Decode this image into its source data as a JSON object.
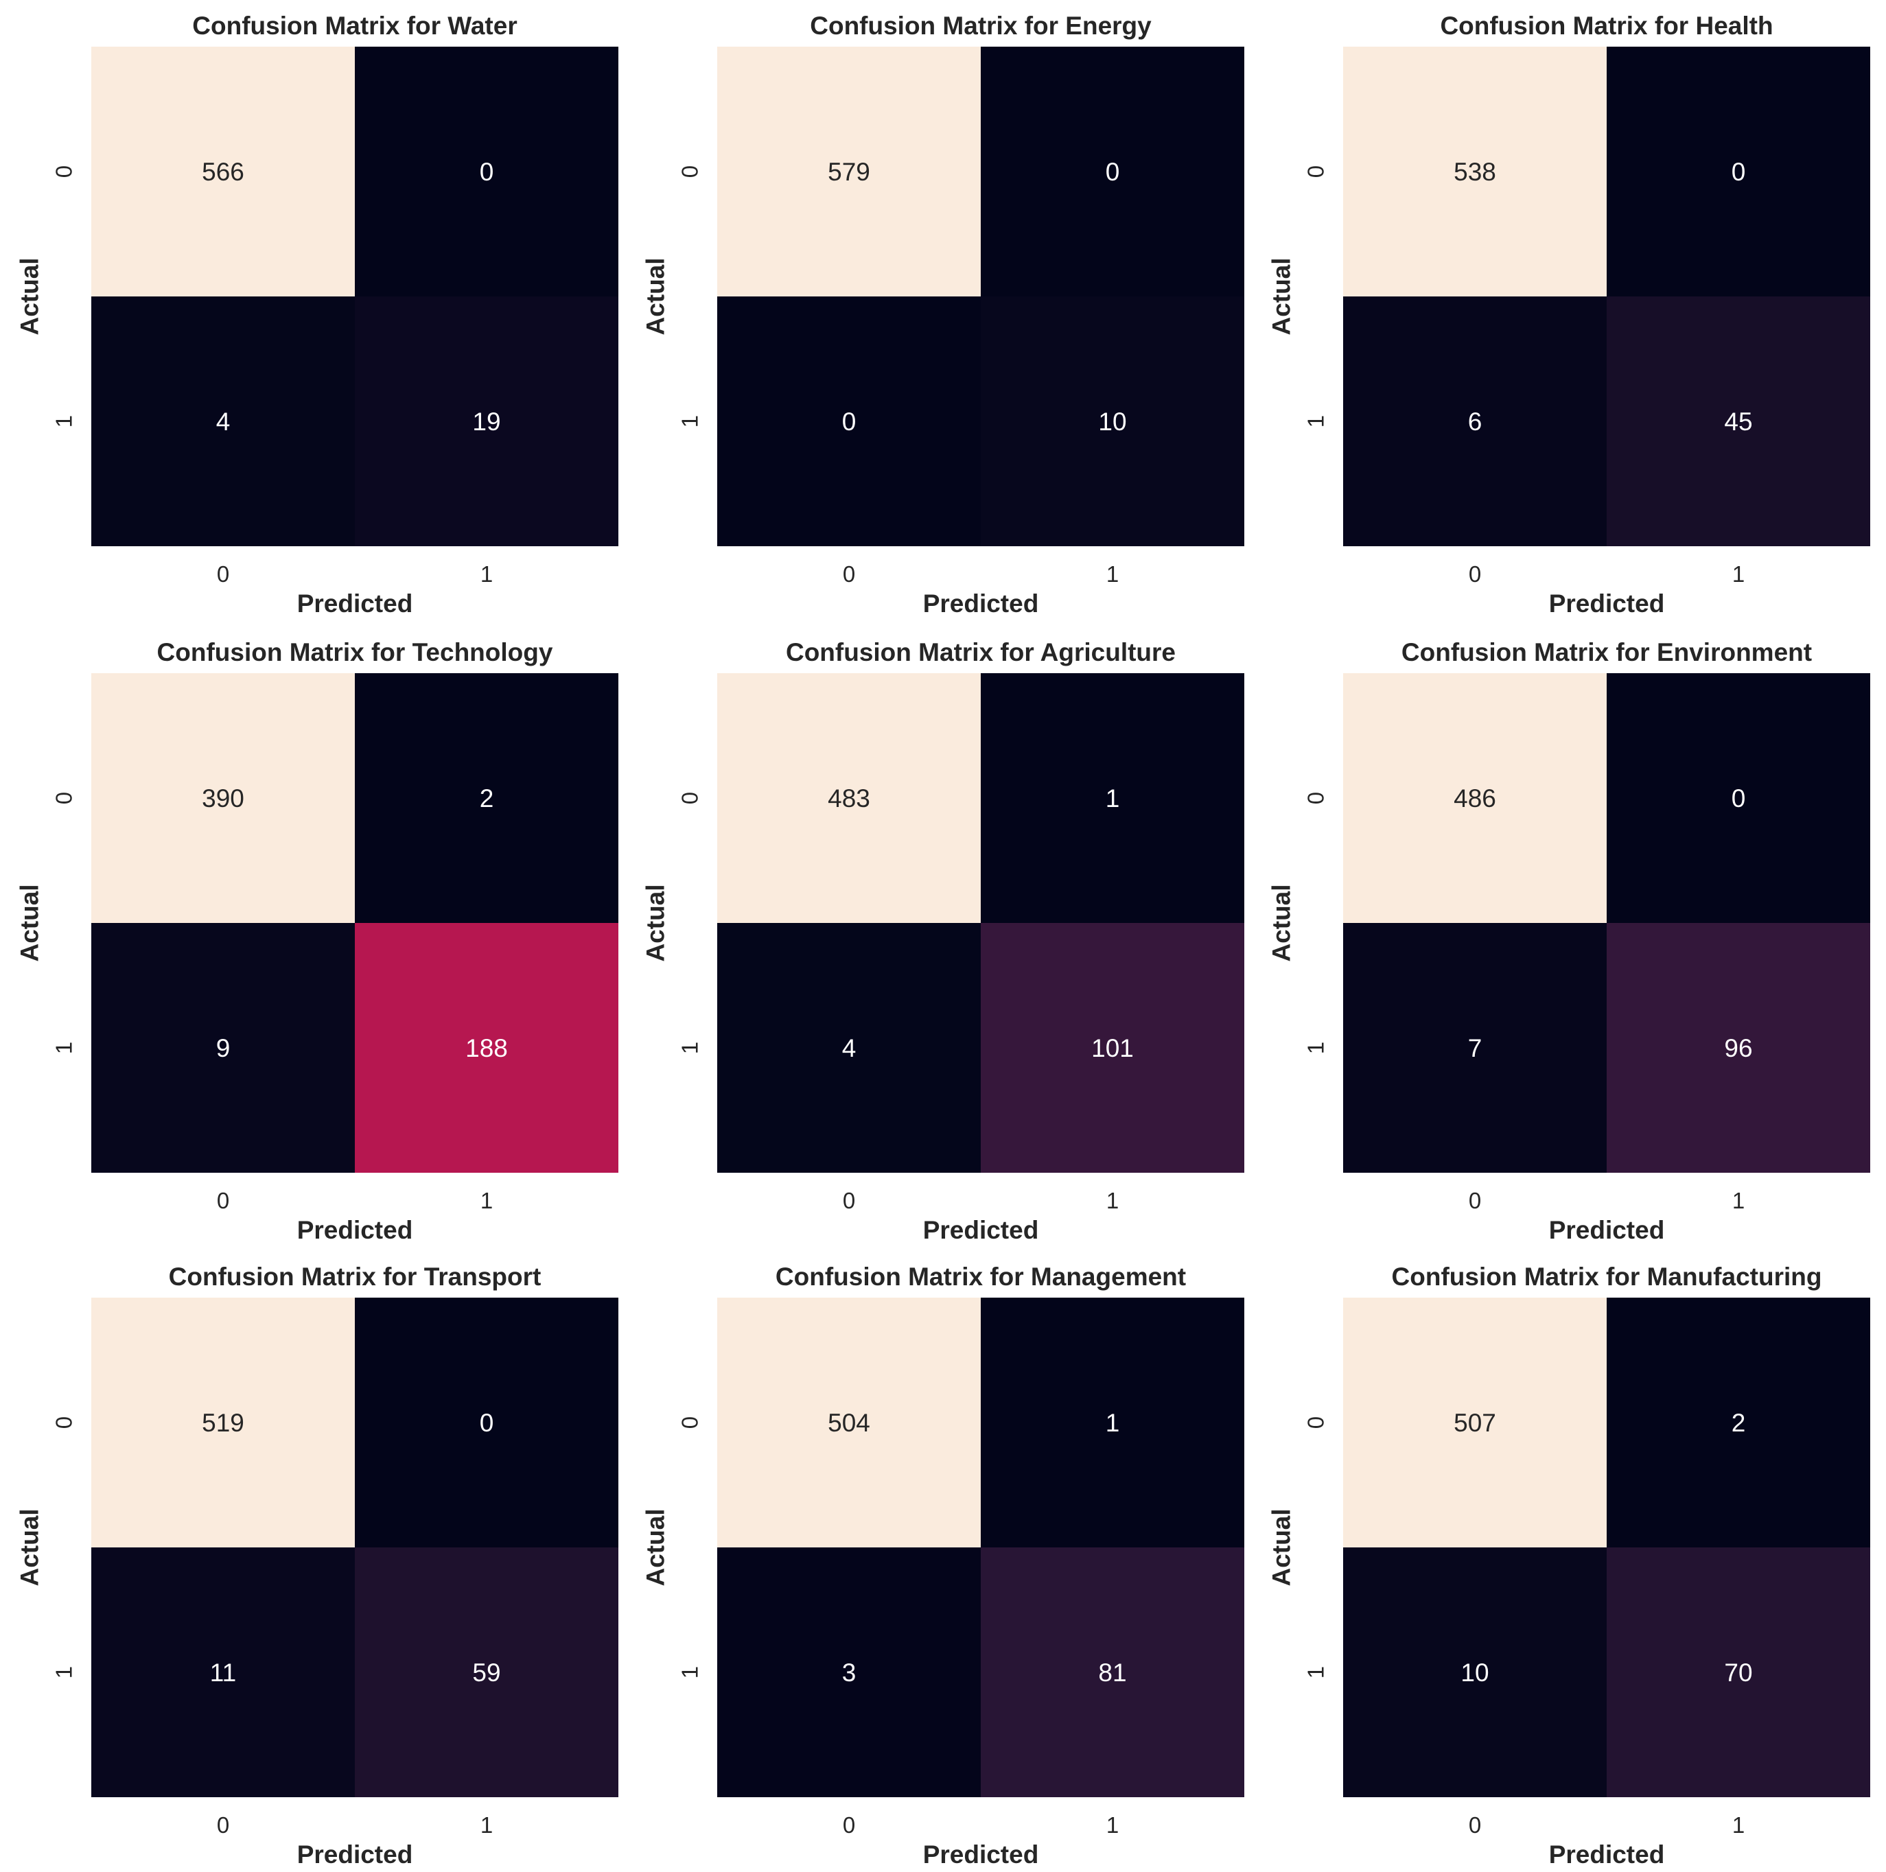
{
  "figure": {
    "background": "#ffffff",
    "layout": "3x3 grid"
  },
  "colormap": {
    "name": "rocket",
    "stops": [
      "#03051a",
      "#2a1636",
      "#5a1a4a",
      "#c31751",
      "#f06043",
      "#f6b48f",
      "#faebdd"
    ]
  },
  "chart_data": [
    {
      "type": "heatmap",
      "title": "Confusion Matrix for Water",
      "xlabel": "Predicted",
      "ylabel": "Actual",
      "x_ticks": [
        "0",
        "1"
      ],
      "y_ticks": [
        "0",
        "1"
      ],
      "matrix": [
        [
          566,
          0
        ],
        [
          4,
          19
        ]
      ],
      "colorbar": false
    },
    {
      "type": "heatmap",
      "title": "Confusion Matrix for Energy",
      "xlabel": "Predicted",
      "ylabel": "Actual",
      "x_ticks": [
        "0",
        "1"
      ],
      "y_ticks": [
        "0",
        "1"
      ],
      "matrix": [
        [
          579,
          0
        ],
        [
          0,
          10
        ]
      ],
      "colorbar": false
    },
    {
      "type": "heatmap",
      "title": "Confusion Matrix for Health",
      "xlabel": "Predicted",
      "ylabel": "Actual",
      "x_ticks": [
        "0",
        "1"
      ],
      "y_ticks": [
        "0",
        "1"
      ],
      "matrix": [
        [
          538,
          0
        ],
        [
          6,
          45
        ]
      ],
      "colorbar": false
    },
    {
      "type": "heatmap",
      "title": "Confusion Matrix for Technology",
      "xlabel": "Predicted",
      "ylabel": "Actual",
      "x_ticks": [
        "0",
        "1"
      ],
      "y_ticks": [
        "0",
        "1"
      ],
      "matrix": [
        [
          390,
          2
        ],
        [
          9,
          188
        ]
      ],
      "colorbar": false
    },
    {
      "type": "heatmap",
      "title": "Confusion Matrix for Agriculture",
      "xlabel": "Predicted",
      "ylabel": "Actual",
      "x_ticks": [
        "0",
        "1"
      ],
      "y_ticks": [
        "0",
        "1"
      ],
      "matrix": [
        [
          483,
          1
        ],
        [
          4,
          101
        ]
      ],
      "colorbar": false
    },
    {
      "type": "heatmap",
      "title": "Confusion Matrix for Environment",
      "xlabel": "Predicted",
      "ylabel": "Actual",
      "x_ticks": [
        "0",
        "1"
      ],
      "y_ticks": [
        "0",
        "1"
      ],
      "matrix": [
        [
          486,
          0
        ],
        [
          7,
          96
        ]
      ],
      "colorbar": false
    },
    {
      "type": "heatmap",
      "title": "Confusion Matrix for Transport",
      "xlabel": "Predicted",
      "ylabel": "Actual",
      "x_ticks": [
        "0",
        "1"
      ],
      "y_ticks": [
        "0",
        "1"
      ],
      "matrix": [
        [
          519,
          0
        ],
        [
          11,
          59
        ]
      ],
      "colorbar": false
    },
    {
      "type": "heatmap",
      "title": "Confusion Matrix for Management",
      "xlabel": "Predicted",
      "ylabel": "Actual",
      "x_ticks": [
        "0",
        "1"
      ],
      "y_ticks": [
        "0",
        "1"
      ],
      "matrix": [
        [
          504,
          1
        ],
        [
          3,
          81
        ]
      ],
      "colorbar": false
    },
    {
      "type": "heatmap",
      "title": "Confusion Matrix for Manufacturing",
      "xlabel": "Predicted",
      "ylabel": "Actual",
      "x_ticks": [
        "0",
        "1"
      ],
      "y_ticks": [
        "0",
        "1"
      ],
      "matrix": [
        [
          507,
          2
        ],
        [
          10,
          70
        ]
      ],
      "colorbar": false
    }
  ]
}
